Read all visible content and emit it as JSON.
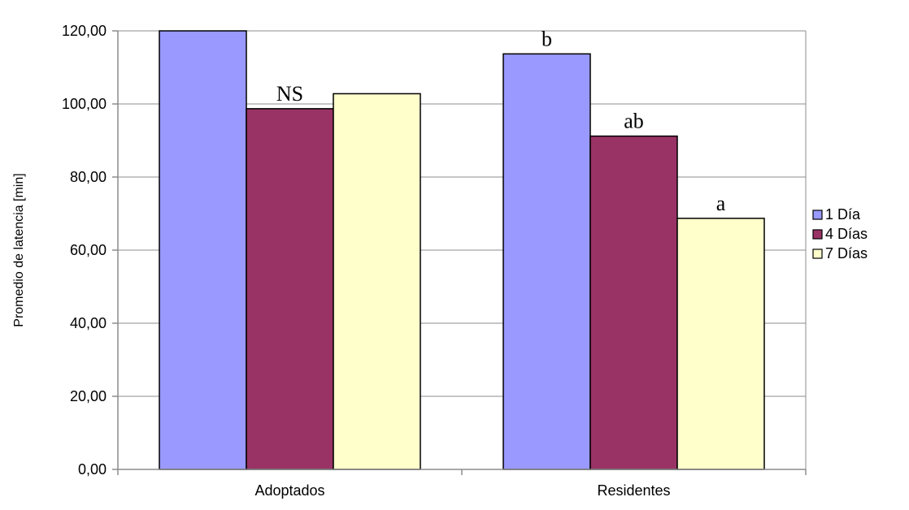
{
  "chart_data": {
    "type": "bar",
    "title": "",
    "xlabel": "",
    "ylabel": "Promedio de latencia [min]",
    "ylim": [
      0,
      120
    ],
    "yticks": [
      "0,00",
      "20,00",
      "40,00",
      "60,00",
      "80,00",
      "100,00",
      "120,00"
    ],
    "categories": [
      "Adoptados",
      "Residentes"
    ],
    "series": [
      {
        "name": "1 Día",
        "color": "#9999FF",
        "values": [
          120.0,
          113.7
        ]
      },
      {
        "name": "4 Días",
        "color": "#993366",
        "values": [
          98.7,
          91.2
        ]
      },
      {
        "name": "7 Días",
        "color": "#FFFFCC",
        "values": [
          102.8,
          68.7
        ]
      }
    ],
    "annotations": [
      {
        "category": "Adoptados",
        "series": "4 Días",
        "text": "NS"
      },
      {
        "category": "Residentes",
        "series": "1 Día",
        "text": "b"
      },
      {
        "category": "Residentes",
        "series": "4 Días",
        "text": "ab"
      },
      {
        "category": "Residentes",
        "series": "7 Días",
        "text": "a"
      }
    ],
    "grid": true,
    "legend": "right"
  }
}
